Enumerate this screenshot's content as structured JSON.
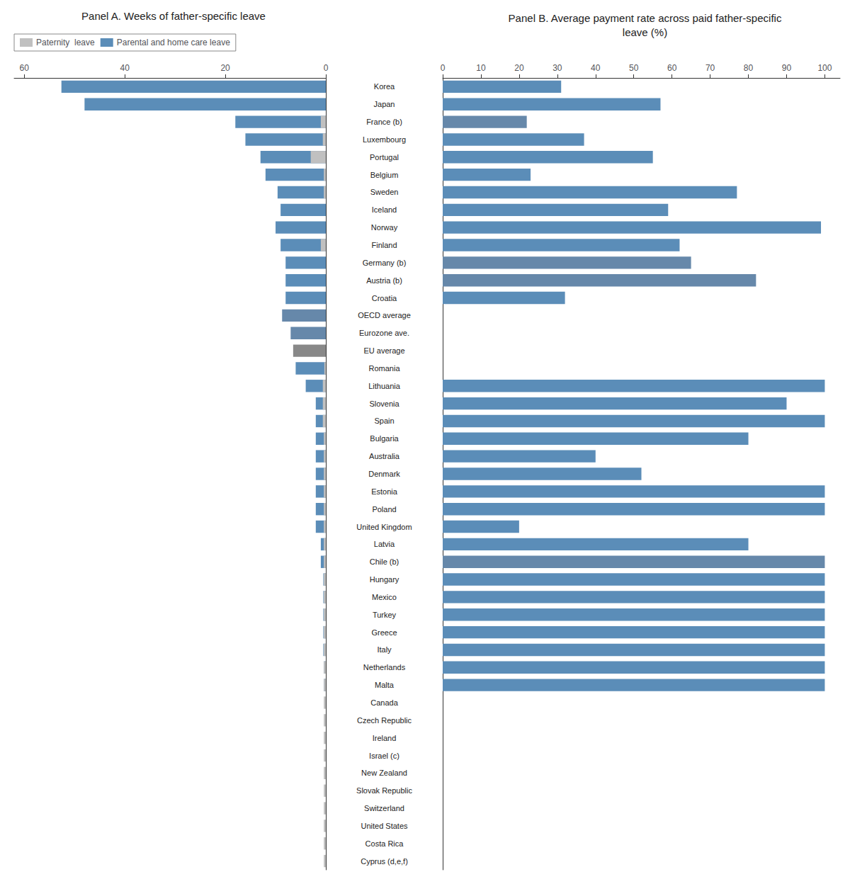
{
  "chart_data": [
    {
      "type": "bar",
      "orientation": "horizontal",
      "title": "Panel A. Weeks of father-specific leave",
      "categories": [
        "Korea",
        "Japan",
        "France (b)",
        "Luxembourg",
        "Portugal",
        "Belgium",
        "Sweden",
        "Iceland",
        "Norway",
        "Finland",
        "Germany (b)",
        "Austria (b)",
        "Croatia",
        "OECD average",
        "Eurozone ave.",
        "EU average",
        "Romania",
        "Lithuania",
        "Slovenia",
        "Spain",
        "Bulgaria",
        "Australia",
        "Denmark",
        "Estonia",
        "Poland",
        "United Kingdom",
        "Latvia",
        "Chile (b)",
        "Hungary",
        "Mexico",
        "Turkey",
        "Greece",
        "Italy",
        "Netherlands",
        "Malta",
        "Canada",
        "Czech Republic",
        "Ireland",
        "Israel (c)",
        "New Zealand",
        "Slovak Republic",
        "Switzerland",
        "United States",
        "Costa Rica",
        "Cyprus (d,e,f)"
      ],
      "series": [
        {
          "name": "Paternity  leave",
          "color": "#C0C0C0",
          "values": [
            0.0,
            0.0,
            1.0,
            0.6,
            3.0,
            0.4,
            0.4,
            0.0,
            0.0,
            1.0,
            0.0,
            0.0,
            0.0,
            0.0,
            0.0,
            0.0,
            0.3,
            0.6,
            0.6,
            0.6,
            0.4,
            0.4,
            0.4,
            0.4,
            0.4,
            0.4,
            0.4,
            0.4,
            0.4,
            0.4,
            0.4,
            0.4,
            0.4,
            0.4,
            0.4,
            0.4,
            0.4,
            0.4,
            0.4,
            0.4,
            0.4,
            0.4,
            0.4,
            0.4,
            0.4
          ]
        },
        {
          "name": "Parental and home care leave",
          "color": "#5B8DB8",
          "colors": [
            "#5B8DB8",
            "#5B8DB8",
            "#5B8DB8",
            "#5B8DB8",
            "#5B8DB8",
            "#5B8DB8",
            "#5B8DB8",
            "#5B8DB8",
            "#5B8DB8",
            "#5B8DB8",
            "#5B8DB8",
            "#5B8DB8",
            "#5B8DB8",
            "#6688AA",
            "#6688AA",
            "#888888",
            "#5B8DB8",
            "#5B8DB8",
            "#5B8DB8",
            "#5B8DB8",
            "#5B8DB8",
            "#5B8DB8",
            "#5B8DB8",
            "#5B8DB8",
            "#5B8DB8",
            "#5B8DB8",
            "#5B8DB8",
            "#5B8DB8",
            "#5B8DB8",
            "#5B8DB8",
            "#5B8DB8",
            "#5B8DB8",
            "#5B8DB8",
            "#5B8DB8",
            "#5B8DB8",
            "#5B8DB8",
            "#5B8DB8",
            "#5B8DB8",
            "#5B8DB8",
            "#5B8DB8",
            "#5B8DB8",
            "#5B8DB8",
            "#5B8DB8",
            "#5B8DB8",
            "#5B8DB8"
          ],
          "values": [
            52.6,
            48.0,
            18.0,
            16.0,
            13.0,
            12.0,
            9.6,
            9.0,
            10.0,
            9.0,
            8.0,
            8.0,
            8.0,
            8.7,
            7.0,
            6.5,
            6.0,
            4.0,
            2.0,
            2.0,
            2.0,
            2.0,
            2.0,
            2.0,
            2.0,
            2.0,
            1.0,
            1.0,
            0.5,
            0.5,
            0.5,
            0.5,
            0.5,
            0.4,
            0.4,
            0.0,
            0.0,
            0.0,
            0.0,
            0.0,
            0.0,
            0.0,
            0.0,
            0.0,
            0.0
          ]
        }
      ],
      "xlim": [
        0,
        62
      ],
      "xticks": [
        0,
        20,
        40,
        60
      ],
      "grid": false,
      "legend": "upper left",
      "tick_labels": "x"
    },
    {
      "type": "bar",
      "orientation": "horizontal",
      "title": "Panel B. Average payment rate across paid father-specific\nleave (%)",
      "categories": [
        "Korea",
        "Japan",
        "France (b)",
        "Luxembourg",
        "Portugal",
        "Belgium",
        "Sweden",
        "Iceland",
        "Norway",
        "Finland",
        "Germany (b)",
        "Austria (b)",
        "Croatia",
        "OECD average",
        "Eurozone ave.",
        "EU average",
        "Romania",
        "Lithuania",
        "Slovenia",
        "Spain",
        "Bulgaria",
        "Australia",
        "Denmark",
        "Estonia",
        "Poland",
        "United Kingdom",
        "Latvia",
        "Chile (b)",
        "Hungary",
        "Mexico",
        "Turkey",
        "Greece",
        "Italy",
        "Netherlands",
        "Malta",
        "Canada",
        "Czech Republic",
        "Ireland",
        "Israel (c)",
        "New Zealand",
        "Slovak Republic",
        "Switzerland",
        "United States",
        "Costa Rica",
        "Cyprus (d,e,f)"
      ],
      "values": [
        31,
        57,
        22,
        37,
        55,
        23,
        77,
        59,
        99,
        62,
        65,
        82,
        32,
        0,
        0,
        0,
        0,
        100,
        90,
        100,
        80,
        40,
        52,
        100,
        100,
        20,
        80,
        100,
        100,
        100,
        100,
        100,
        100,
        100,
        100,
        0,
        0,
        0,
        0,
        0,
        0,
        0,
        0,
        0,
        0
      ],
      "color": "#5B8DB8",
      "colors": [
        "#5B8DB8",
        "#5B8DB8",
        "#6688AA",
        "#5B8DB8",
        "#5B8DB8",
        "#5B8DB8",
        "#5B8DB8",
        "#5B8DB8",
        "#5B8DB8",
        "#5B8DB8",
        "#6688AA",
        "#6688AA",
        "#5B8DB8",
        "#5B8DB8",
        "#5B8DB8",
        "#5B8DB8",
        "#5B8DB8",
        "#5B8DB8",
        "#5B8DB8",
        "#5B8DB8",
        "#5B8DB8",
        "#5B8DB8",
        "#5B8DB8",
        "#5B8DB8",
        "#5B8DB8",
        "#5B8DB8",
        "#5B8DB8",
        "#6688AA",
        "#5B8DB8",
        "#5B8DB8",
        "#5B8DB8",
        "#5B8DB8",
        "#5B8DB8",
        "#5B8DB8",
        "#5B8DB8",
        "#5B8DB8",
        "#5B8DB8",
        "#5B8DB8",
        "#5B8DB8",
        "#5B8DB8",
        "#5B8DB8",
        "#5B8DB8",
        "#5B8DB8",
        "#5B8DB8",
        "#5B8DB8"
      ],
      "xlim": [
        0,
        104
      ],
      "xticks": [
        0,
        10,
        20,
        30,
        40,
        50,
        60,
        70,
        80,
        90,
        100
      ],
      "grid": false
    }
  ]
}
